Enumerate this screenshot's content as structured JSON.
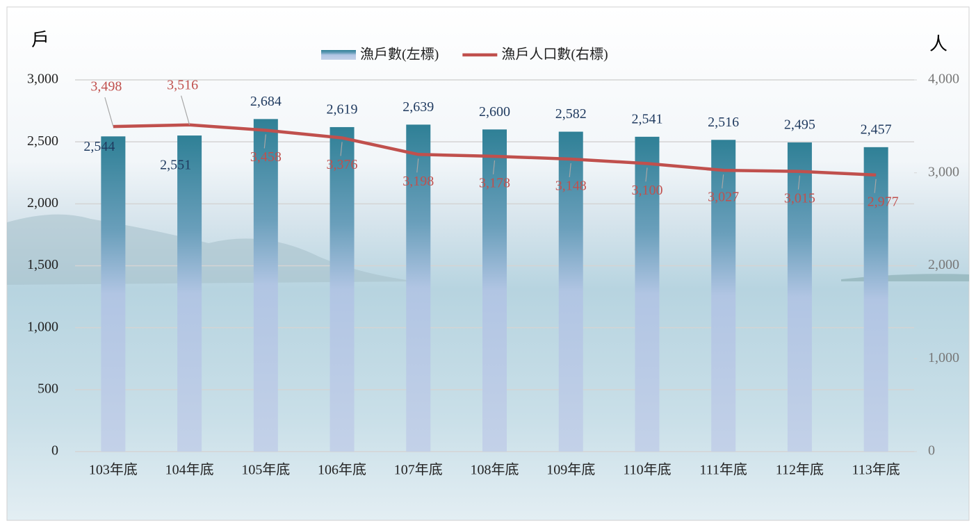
{
  "chart_data": {
    "type": "bar-line",
    "y_label": "戶",
    "y2_label": "人",
    "categories": [
      "103年底",
      "104年底",
      "105年底",
      "106年底",
      "107年底",
      "108年底",
      "109年底",
      "110年底",
      "111年底",
      "112年底",
      "113年底"
    ],
    "series": [
      {
        "name": "漁戶數(左標)",
        "type": "bar",
        "color": "#2f8096",
        "values": [
          2544,
          2551,
          2684,
          2619,
          2639,
          2600,
          2582,
          2541,
          2516,
          2495,
          2457
        ],
        "value_labels": [
          "2,544",
          "2,551",
          "2,684",
          "2,619",
          "2,639",
          "2,600",
          "2,582",
          "2,541",
          "2,516",
          "2,495",
          "2,457"
        ]
      },
      {
        "name": "漁戶人口數(右標)",
        "type": "line",
        "axis": "y2",
        "color": "#c0504d",
        "values": [
          3498,
          3516,
          3458,
          3376,
          3198,
          3178,
          3148,
          3100,
          3027,
          3015,
          2977
        ],
        "value_labels": [
          "3,498",
          "3,516",
          "3,458",
          "3,376",
          "3,198",
          "3,178",
          "3,148",
          "3,100",
          "3,027",
          "3,015",
          "2,977"
        ]
      }
    ],
    "ylim": [
      0,
      3000
    ],
    "yticks": [
      0,
      500,
      {
        "value": 1000,
        "label": "1,000"
      },
      {
        "value": 1500,
        "label": "1,500"
      },
      {
        "value": 2000,
        "label": "2,000"
      },
      {
        "value": 2500,
        "label": "2,500"
      },
      {
        "value": 3000,
        "label": "3,000"
      }
    ],
    "y2lim": [
      0,
      4000
    ],
    "y2ticks": [
      0,
      {
        "value": 1000,
        "label": "1,000"
      },
      {
        "value": 2000,
        "label": "2,000"
      },
      {
        "value": 3000,
        "label": "3,000"
      },
      {
        "value": 4000,
        "label": "4,000"
      }
    ],
    "grid": true,
    "legend": "top"
  }
}
